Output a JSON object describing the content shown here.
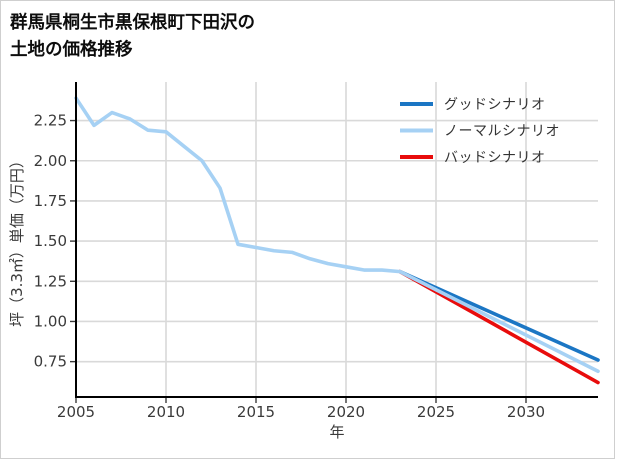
{
  "page": {
    "title_line1": "群馬県桐生市黒保根町下田沢の",
    "title_line2": "土地の価格推移"
  },
  "chart_data": {
    "type": "line",
    "title": "群馬県桐生市黒保根町下田沢の土地の価格推移",
    "xlabel": "年",
    "ylabel": "坪（3.3㎡）単価（万円）",
    "x_ticks": [
      2005,
      2010,
      2015,
      2020,
      2025,
      2030
    ],
    "y_ticks": [
      "2.25",
      "2.00",
      "1.75",
      "1.50",
      "1.25",
      "1.00",
      "0.75"
    ],
    "xlim": [
      2005,
      2034
    ],
    "ylim": [
      0.53,
      2.49
    ],
    "grid": true,
    "legend_position": "top-right",
    "colors": {
      "grid": "#d9d9d9",
      "axis": "#000000",
      "tick_text": "#3a3a3a",
      "good": "#1b76c4",
      "normal": "#a6d1f4",
      "bad": "#e80c0c"
    },
    "series": [
      {
        "name": "グッドシナリオ",
        "key": "good",
        "color": "#1b76c4",
        "x": [
          2023,
          2034
        ],
        "values": [
          1.31,
          0.76
        ]
      },
      {
        "name": "ノーマルシナリオ",
        "key": "normal",
        "color": "#a6d1f4",
        "x": [
          2005,
          2006,
          2007,
          2008,
          2009,
          2010,
          2011,
          2012,
          2013,
          2014,
          2015,
          2016,
          2017,
          2018,
          2019,
          2020,
          2021,
          2022,
          2023,
          2034
        ],
        "values": [
          2.39,
          2.22,
          2.3,
          2.26,
          2.19,
          2.18,
          2.09,
          2.0,
          1.83,
          1.48,
          1.46,
          1.44,
          1.43,
          1.39,
          1.36,
          1.34,
          1.32,
          1.32,
          1.31,
          0.69
        ]
      },
      {
        "name": "バッドシナリオ",
        "key": "bad",
        "color": "#e80c0c",
        "x": [
          2023,
          2034
        ],
        "values": [
          1.31,
          0.62
        ]
      }
    ]
  }
}
